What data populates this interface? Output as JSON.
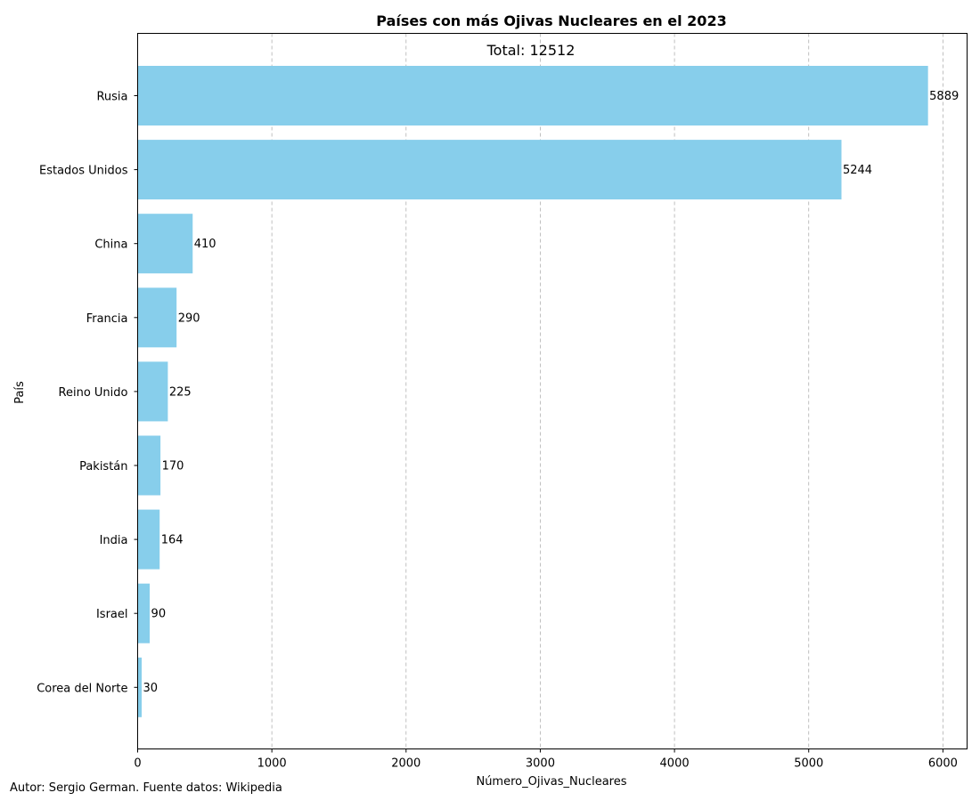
{
  "chart_data": {
    "type": "bar",
    "orientation": "horizontal",
    "title": "Países con más Ojivas Nucleares en el 2023",
    "subtitle": "Total: 12512",
    "xlabel": "Número_Ojivas_Nucleares",
    "ylabel": "País",
    "xlim": [
      0,
      6180
    ],
    "xticks": [
      0,
      1000,
      2000,
      3000,
      4000,
      5000,
      6000
    ],
    "grid": "x-dashed",
    "categories": [
      "Rusia",
      "Estados Unidos",
      "China",
      "Francia",
      "Reino Unido",
      "Pakistán",
      "India",
      "Israel",
      "Corea del Norte"
    ],
    "values": [
      5889,
      5244,
      410,
      290,
      225,
      170,
      164,
      90,
      30
    ],
    "bar_color": "#87ceeb"
  },
  "footer": "Autor: Sergio German. Fuente datos: Wikipedia"
}
